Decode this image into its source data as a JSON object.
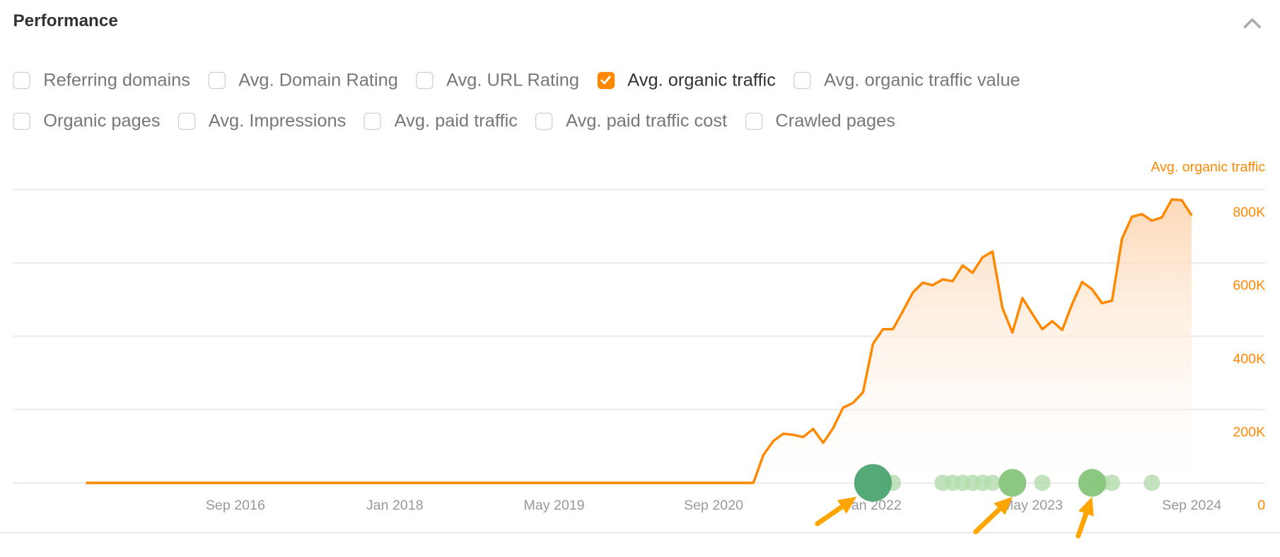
{
  "header": {
    "title": "Performance",
    "collapse_icon": "chevron-up-icon"
  },
  "metrics_row1": [
    {
      "label": "Referring domains",
      "checked": false
    },
    {
      "label": "Avg. Domain Rating",
      "checked": false
    },
    {
      "label": "Avg. URL Rating",
      "checked": false
    },
    {
      "label": "Avg. organic traffic",
      "checked": true
    },
    {
      "label": "Avg. organic traffic value",
      "checked": false
    }
  ],
  "metrics_row2": [
    {
      "label": "Organic pages",
      "checked": false
    },
    {
      "label": "Avg. Impressions",
      "checked": false
    },
    {
      "label": "Avg. paid traffic",
      "checked": false
    },
    {
      "label": "Avg. paid traffic cost",
      "checked": false
    },
    {
      "label": "Crawled pages",
      "checked": false
    }
  ],
  "colors": {
    "accent": "#ff8800",
    "annotation_dark": "#4ca470",
    "annotation_mid": "#86c57a",
    "annotation_light": "#b6ddb0",
    "arrow": "#ffa500"
  },
  "chart_data": {
    "type": "area",
    "series": [
      {
        "name": "Avg. organic traffic",
        "color": "#ff8800",
        "start": "2015-06",
        "end": "2024-09",
        "zero_until": "2021-01",
        "monthly_from_2021_01": [
          0,
          76000,
          114000,
          134000,
          131000,
          125000,
          147000,
          109000,
          149000,
          205000,
          218000,
          247000,
          379000,
          419000,
          419000,
          468000,
          519000,
          546000,
          539000,
          555000,
          550000,
          593000,
          573000,
          615000,
          631000,
          477000,
          410000,
          504000,
          461000,
          419000,
          441000,
          417000,
          488000,
          548000,
          528000,
          490000,
          497000,
          666000,
          726000,
          733000,
          715000,
          724000,
          773000,
          771000,
          729000
        ]
      }
    ],
    "y_axis_title": "Avg. organic traffic",
    "yticks": [
      "0",
      "200K",
      "400K",
      "600K",
      "800K"
    ],
    "ylim": [
      0,
      800000
    ],
    "yaxis_position": "right",
    "xticks": [
      "Sep 2016",
      "Jan 2018",
      "May 2019",
      "Sep 2020",
      "Jan 2022",
      "May 2023",
      "Sep 2024"
    ],
    "grid": true,
    "annotations": [
      {
        "date": "2022-01",
        "size": "large",
        "tone": "dark",
        "arrow": true
      },
      {
        "date": "2022-03",
        "size": "small",
        "tone": "light"
      },
      {
        "date": "2022-08",
        "size": "small",
        "tone": "light"
      },
      {
        "date": "2022-09",
        "size": "small",
        "tone": "light"
      },
      {
        "date": "2022-10",
        "size": "small",
        "tone": "light"
      },
      {
        "date": "2022-11",
        "size": "small",
        "tone": "light"
      },
      {
        "date": "2022-12",
        "size": "small",
        "tone": "light"
      },
      {
        "date": "2023-01",
        "size": "small",
        "tone": "light"
      },
      {
        "date": "2023-03",
        "size": "medium",
        "tone": "mid",
        "arrow": true
      },
      {
        "date": "2023-06",
        "size": "small",
        "tone": "light"
      },
      {
        "date": "2023-11",
        "size": "medium",
        "tone": "mid",
        "arrow": true
      },
      {
        "date": "2023-12",
        "size": "small",
        "tone": "light"
      },
      {
        "date": "2024-01",
        "size": "small",
        "tone": "light"
      },
      {
        "date": "2024-05",
        "size": "small",
        "tone": "light"
      }
    ]
  }
}
